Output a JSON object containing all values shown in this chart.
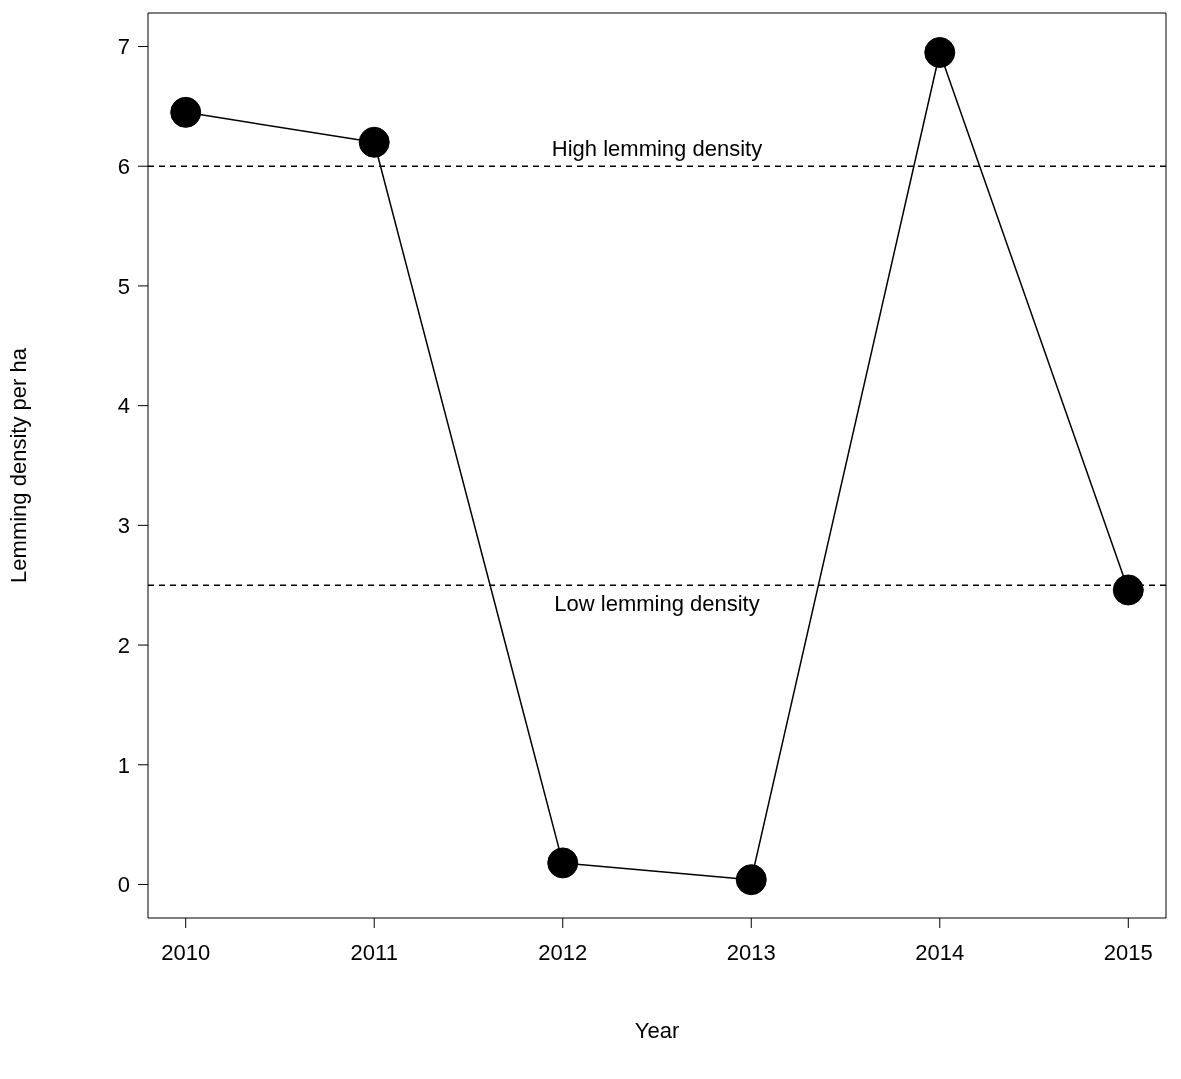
{
  "chart_data": {
    "type": "line",
    "xlabel": "Year",
    "ylabel": "Lemming density per ha",
    "x": [
      2010,
      2011,
      2012,
      2013,
      2014,
      2015
    ],
    "series": [
      {
        "color": "#000000",
        "values": [
          6.45,
          6.2,
          0.18,
          0.04,
          6.95,
          2.46
        ]
      }
    ],
    "xlim": [
      2009.8,
      2015.2
    ],
    "xticks": [
      2010,
      2011,
      2012,
      2013,
      2014,
      2015
    ],
    "ylim": [
      -0.28,
      7.28
    ],
    "yticks": [
      0,
      1,
      2,
      3,
      4,
      5,
      6,
      7
    ],
    "ref_lines": [
      {
        "axis": "y",
        "value": 6,
        "label": "High lemming density",
        "color": "#000000",
        "line_style": "dashed"
      },
      {
        "axis": "y",
        "value": 2.5,
        "label": "Low lemming density",
        "color": "#000000",
        "line_style": "dashed"
      }
    ],
    "grid": false,
    "marker": "circle",
    "line_style": "solid"
  }
}
